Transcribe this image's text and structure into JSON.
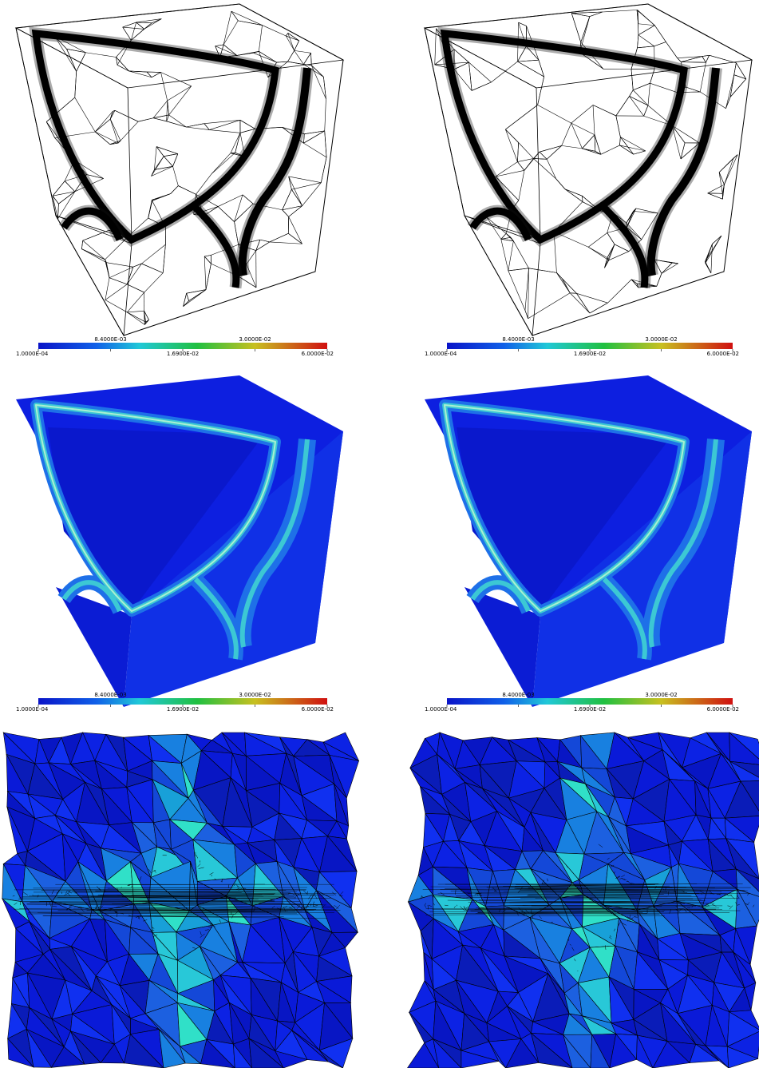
{
  "colorbars": [
    {
      "ticks": [
        {
          "value": 0.0001,
          "label": "1.0000E-04"
        },
        {
          "value": 0.0084,
          "label": "8.4000E-03"
        },
        {
          "value": 0.0169,
          "label": "1.6900E-02"
        },
        {
          "value": 0.03,
          "label": "3.0000E-02"
        },
        {
          "value": 0.06,
          "label": "6.0000E-02"
        }
      ]
    },
    {
      "ticks": [
        {
          "value": 0.0001,
          "label": "1.0000E-04"
        },
        {
          "value": 0.0084,
          "label": "8.4000E-03"
        },
        {
          "value": 0.0169,
          "label": "1.6900E-02"
        },
        {
          "value": 0.03,
          "label": "3.0000E-02"
        },
        {
          "value": 0.06,
          "label": "6.0000E-02"
        }
      ]
    },
    {
      "ticks": [
        {
          "value": 0.0001,
          "label": "1.0000E-04"
        },
        {
          "value": 0.0084,
          "label": "8.4000E-03"
        },
        {
          "value": 0.0169,
          "label": "1.6900E-02"
        },
        {
          "value": 0.03,
          "label": "3.0000E-02"
        },
        {
          "value": 0.06,
          "label": "6.0000E-02"
        }
      ]
    },
    {
      "ticks": [
        {
          "value": 0.0001,
          "label": "1.0000E-04"
        },
        {
          "value": 0.0084,
          "label": "8.4000E-03"
        },
        {
          "value": 0.0169,
          "label": "1.6900E-02"
        },
        {
          "value": 0.03,
          "label": "3.0000E-02"
        },
        {
          "value": 0.06,
          "label": "6.0000E-02"
        }
      ]
    }
  ]
}
